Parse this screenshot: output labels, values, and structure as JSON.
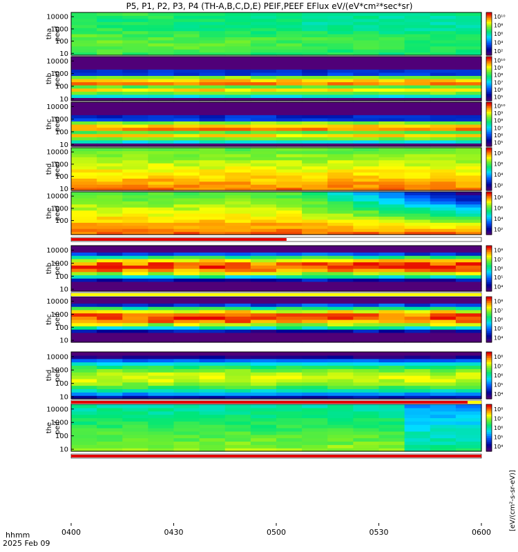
{
  "title": "P5, P1, P2, P3, P4 (TH-A,B,C,D,E) PEIF,PEEF EFlux eV/(eV*cm²*sec*sr)",
  "colorbar_label": "[eV/(cm²-s-sr-eV)]",
  "time_axis": {
    "label_line1": "hhmm",
    "label_line2": "2025 Feb 09",
    "ticks": [
      "0400",
      "0430",
      "0500",
      "0530",
      "0600"
    ]
  },
  "chart_data": {
    "type": "heatmap",
    "x_range": [
      "0400",
      "0600"
    ],
    "y_scale": "log",
    "colormap": "rainbow",
    "panels": [
      {
        "name": "thb peef",
        "sat": "thb",
        "species": "peef",
        "y_ticks": [
          "10",
          "100",
          "1000",
          "10000"
        ],
        "cbar_ticks": [
          "10⁵",
          "10⁶",
          "10⁷",
          "10⁸",
          "10⁹",
          "10¹⁰"
        ],
        "description": "electron spectrogram",
        "pattern": "peak"
      },
      {
        "name": "thc peef",
        "sat": "thc",
        "species": "peef",
        "y_ticks": [
          "10",
          "100",
          "1000",
          "10000"
        ],
        "cbar_ticks": [
          "10⁵",
          "10⁶",
          "10⁷",
          "10⁸",
          "10⁹",
          "10¹⁰"
        ],
        "pattern": "peak"
      },
      {
        "name": "thd peef",
        "sat": "thd",
        "species": "peef",
        "y_ticks": [
          "10",
          "100",
          "1000",
          "10000"
        ],
        "cbar_ticks": [
          "10²",
          "10⁴",
          "10⁶",
          "10⁸"
        ],
        "pattern": "hot"
      },
      {
        "name": "the peef",
        "sat": "the",
        "species": "peef",
        "y_ticks": [
          "100",
          "1000",
          "10000"
        ],
        "cbar_ticks": [
          "10²",
          "10⁴",
          "10⁶",
          "10⁸"
        ],
        "pattern": "hot_fade"
      },
      {
        "name": "thb peif",
        "sat": "thb",
        "species": "peif",
        "y_ticks": [
          "10",
          "100",
          "1000",
          "10000"
        ],
        "cbar_ticks": [
          "10⁴",
          "10⁵",
          "10⁶",
          "10⁷",
          "10⁸"
        ],
        "pattern": "ion_peak"
      },
      {
        "name": "thc peif",
        "sat": "thc",
        "species": "peif",
        "y_ticks": [
          "10",
          "100",
          "1000",
          "10000"
        ],
        "cbar_ticks": [
          "10⁴",
          "10⁵",
          "10⁶",
          "10⁷",
          "10⁸"
        ],
        "pattern": "ion_peak"
      },
      {
        "name": "thd peif",
        "sat": "thd",
        "species": "peif",
        "y_ticks": [
          "10",
          "100",
          "1000",
          "10000"
        ],
        "cbar_ticks": [
          "10⁴",
          "10⁵",
          "10⁶",
          "10⁷",
          "10⁸"
        ],
        "pattern": "ion_flat"
      },
      {
        "name": "the peif",
        "sat": "the",
        "species": "peif",
        "y_ticks": [
          "10",
          "100",
          "1000",
          "10000"
        ],
        "cbar_ticks": [
          "10⁴",
          "10⁵",
          "10⁶",
          "10⁷",
          "10⁸"
        ],
        "pattern": "ion_fade"
      }
    ],
    "top_panel": {
      "name": "tha peef",
      "sat": "tha",
      "species": "peef",
      "y_ticks": [
        "10",
        "100",
        "1000",
        "10000"
      ],
      "cbar_ticks": [
        "10²",
        "10⁴",
        "10⁶",
        "10⁸",
        "10¹⁰"
      ],
      "pattern": "flat"
    },
    "mode_bars": [
      {
        "after": "the peef",
        "segments": [
          {
            "from": "0400",
            "to": "0503",
            "color": "#e00000"
          }
        ]
      },
      {
        "after": "thb peif",
        "segments": [
          {
            "from": "0400",
            "to": "0600",
            "color": "#ffff00"
          }
        ]
      },
      {
        "after": "thd peif",
        "segments": [
          {
            "from": "0400",
            "to": "0556",
            "color": "#e00000"
          },
          {
            "from": "0556",
            "to": "0600",
            "color": "#ffff00"
          }
        ]
      },
      {
        "after": "the peif",
        "segments": [
          {
            "from": "0400",
            "to": "0600",
            "color": "#e00000"
          }
        ]
      }
    ]
  }
}
